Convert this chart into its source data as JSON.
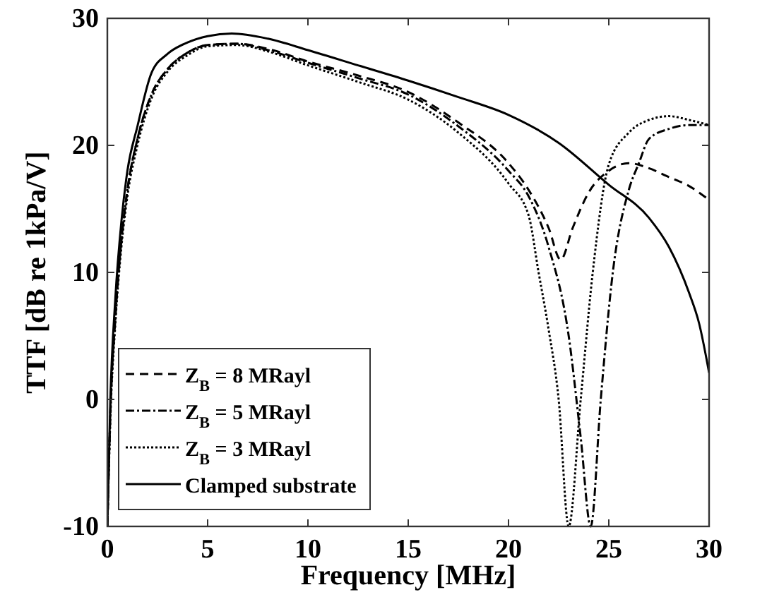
{
  "chart_data": {
    "type": "line",
    "xlabel": "Frequency [MHz]",
    "ylabel": "TTF [dB re 1kPa/V]",
    "xlim": [
      0,
      30
    ],
    "ylim": [
      -10,
      30
    ],
    "xticks": [
      0,
      5,
      10,
      15,
      20,
      25,
      30
    ],
    "yticks": [
      -10,
      0,
      10,
      20,
      30
    ],
    "grid": false,
    "legend": "bottom left",
    "marker": "none",
    "series": [
      {
        "name": "Z$_{B}$ = 8 MRayl",
        "color": "#000000",
        "line_style": "dashed",
        "x": [
          0,
          0.15,
          0.4,
          0.7,
          1,
          1.5,
          2.2,
          3,
          4,
          5,
          6.5,
          8,
          10,
          12.5,
          15,
          17.5,
          20,
          21,
          22,
          22.6,
          23.2,
          24,
          25,
          26,
          27,
          28,
          29,
          30
        ],
        "values": [
          -10,
          -1,
          6.5,
          12.5,
          16.5,
          20.5,
          24,
          26,
          27.3,
          27.9,
          28,
          27.6,
          26.6,
          25.5,
          24.2,
          21.8,
          18.6,
          16.5,
          13.5,
          11,
          13.5,
          16.3,
          18,
          18.6,
          18.2,
          17.5,
          16.8,
          15.7
        ]
      },
      {
        "name": "Z$_{B}$ = 5 MRayl",
        "color": "#000000",
        "line_style": "dashdot",
        "x": [
          0,
          0.15,
          0.4,
          0.7,
          1,
          1.5,
          2.2,
          3,
          4,
          5,
          6.5,
          8,
          10,
          12.5,
          15,
          17.5,
          20,
          21,
          22,
          23,
          23.6,
          24.1,
          24.6,
          25.2,
          26,
          26.5,
          27,
          28,
          29,
          30
        ],
        "values": [
          -10,
          -1,
          6.5,
          12.5,
          16.5,
          20.5,
          24,
          26,
          27.3,
          27.9,
          28,
          27.5,
          26.5,
          25.3,
          24,
          21.5,
          18,
          16,
          12,
          5,
          -3,
          -10,
          0,
          10,
          16.5,
          18.6,
          20.5,
          21.3,
          21.6,
          21.6
        ]
      },
      {
        "name": "Z$_{B}$ = 3 MRayl",
        "color": "#000000",
        "line_style": "dotted",
        "x": [
          0,
          0.15,
          0.4,
          0.7,
          1,
          1.5,
          2.2,
          3,
          4,
          5,
          6.5,
          8,
          10,
          12.5,
          15,
          17.5,
          20,
          21,
          21.5,
          22,
          22.5,
          23,
          23.6,
          24.2,
          25,
          26,
          27,
          28,
          29,
          30
        ],
        "values": [
          -10,
          -1.5,
          6,
          12,
          16,
          20,
          23.7,
          25.8,
          27.1,
          27.8,
          27.9,
          27.4,
          26.3,
          25,
          23.6,
          21,
          17,
          14.5,
          10,
          5.5,
          0,
          -10,
          0,
          10,
          18.5,
          21,
          22,
          22.3,
          22,
          21.6
        ]
      },
      {
        "name": "Clamped substrate",
        "color": "#000000",
        "line_style": "solid",
        "x": [
          0,
          0.15,
          0.4,
          0.7,
          1,
          1.5,
          2.2,
          3,
          4,
          5,
          6.2,
          8,
          10,
          12.5,
          15,
          17.5,
          20,
          22.5,
          25,
          27,
          28,
          29,
          29.5,
          30
        ],
        "values": [
          -10,
          0,
          8,
          14,
          18,
          21.5,
          25.7,
          27.2,
          28.1,
          28.6,
          28.8,
          28.4,
          27.5,
          26.3,
          25.1,
          23.8,
          22.4,
          20.2,
          16.9,
          14.3,
          12,
          8.4,
          6,
          2.1
        ]
      }
    ]
  }
}
